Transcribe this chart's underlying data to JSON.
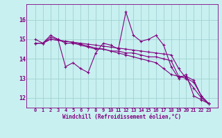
{
  "xlabel": "Windchill (Refroidissement éolien,°C)",
  "bg_color": "#c8f0f0",
  "line_color": "#800080",
  "grid_color": "#a0d0d0",
  "x_values": [
    0,
    1,
    2,
    3,
    4,
    5,
    6,
    7,
    8,
    9,
    10,
    11,
    12,
    13,
    14,
    15,
    16,
    17,
    18,
    19,
    20,
    21,
    22,
    23
  ],
  "line1": [
    15.0,
    14.8,
    15.2,
    15.0,
    13.6,
    13.8,
    13.5,
    13.3,
    14.3,
    14.8,
    14.7,
    14.5,
    16.4,
    15.2,
    14.9,
    15.0,
    15.2,
    14.7,
    13.6,
    13.0,
    13.2,
    12.1,
    11.9,
    11.7
  ],
  "line2": [
    14.8,
    14.8,
    15.1,
    15.0,
    14.8,
    14.8,
    14.7,
    14.6,
    14.5,
    14.5,
    14.4,
    14.4,
    14.3,
    14.3,
    14.2,
    14.1,
    14.1,
    14.0,
    13.9,
    13.1,
    13.1,
    12.9,
    12.1,
    11.7
  ],
  "line3": [
    14.8,
    14.8,
    15.0,
    14.95,
    14.9,
    14.85,
    14.8,
    14.75,
    14.7,
    14.65,
    14.6,
    14.55,
    14.5,
    14.45,
    14.4,
    14.35,
    14.3,
    14.25,
    14.2,
    13.5,
    13.0,
    12.8,
    12.1,
    11.7
  ],
  "line4": [
    14.8,
    14.8,
    15.0,
    14.95,
    14.9,
    14.85,
    14.75,
    14.65,
    14.55,
    14.5,
    14.4,
    14.3,
    14.2,
    14.1,
    14.0,
    13.9,
    13.8,
    13.5,
    13.2,
    13.1,
    13.0,
    12.5,
    12.0,
    11.7
  ],
  "ylim": [
    11.5,
    16.8
  ],
  "yticks": [
    12,
    13,
    14,
    15,
    16
  ],
  "xticks": [
    0,
    1,
    2,
    3,
    4,
    5,
    6,
    7,
    8,
    9,
    10,
    11,
    12,
    13,
    14,
    15,
    16,
    17,
    18,
    19,
    20,
    21,
    22,
    23
  ],
  "marker": "+",
  "markersize": 3,
  "linewidth": 0.8,
  "tick_fontsize": 5,
  "xlabel_fontsize": 5.5
}
